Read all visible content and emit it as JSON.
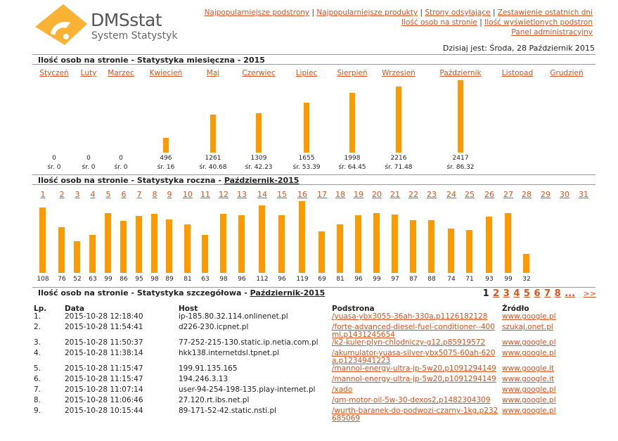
{
  "brand": {
    "name": "DMSstat",
    "tagline": "System Statystyk"
  },
  "nav": {
    "links": [
      "Najpopularniejsze podstrony",
      "Najpopularniejsze produkty",
      "Strony odsyłające",
      "Zestawienie ostatnich dni",
      "Ilość osob na stronie",
      "Ilość wyświetlonych podstron",
      "Panel administracyjny"
    ]
  },
  "today": "Dzisiaj jest: Środa, 28 Październik 2015",
  "monthly": {
    "title": "Ilość osob na stronie - Statystyka miesięczna - 2015",
    "months": [
      "Styczeń",
      "Luty",
      "Marzec",
      "Kwiecień",
      "Maj",
      "Czerwiec",
      "Lipiec",
      "Sierpień",
      "Wrzesień",
      "Październik",
      "Listopad",
      "Grudzień"
    ],
    "values": [
      0,
      0,
      0,
      496,
      1261,
      1309,
      1655,
      1998,
      2216,
      2417,
      null,
      null
    ],
    "values_text": [
      "0",
      "0",
      "0",
      "496",
      "1261",
      "1309",
      "1655",
      "1998",
      "2216",
      "2417",
      "",
      ""
    ],
    "avgs": [
      "śr. 0",
      "śr. 0",
      "śr. 0",
      "śr. 16",
      "śr. 40.68",
      "śr. 42.23",
      "śr. 53.39",
      "śr. 64.45",
      "śr. 71.48",
      "śr. 86.32",
      "",
      ""
    ]
  },
  "daily": {
    "title_prefix": "Ilość osob na stronie - Statystyka roczna - ",
    "title_link": "Październik-2015",
    "days": [
      "1",
      "2",
      "3",
      "4",
      "5",
      "6",
      "7",
      "8",
      "9",
      "10",
      "11",
      "12",
      "13",
      "14",
      "15",
      "16",
      "17",
      "18",
      "19",
      "20",
      "21",
      "22",
      "23",
      "24",
      "25",
      "26",
      "27",
      "28",
      "29",
      "30",
      "31"
    ],
    "values": [
      108,
      76,
      52,
      63,
      99,
      86,
      95,
      98,
      89,
      81,
      63,
      98,
      96,
      112,
      96,
      119,
      69,
      81,
      96,
      99,
      97,
      87,
      88,
      74,
      71,
      93,
      99,
      32,
      null,
      null,
      null
    ]
  },
  "detail": {
    "title_prefix": "Ilość osob na stronie - Statystyka szczegółowa - ",
    "title_link": "Październik-2015",
    "pager": {
      "pages": [
        "1",
        "2",
        "3",
        "4",
        "5",
        "6",
        "7",
        "8",
        "..."
      ],
      "current": "1",
      "next": ">>"
    },
    "headers": {
      "lp": "Lp.",
      "data": "Data",
      "host": "Host",
      "podstrona": "Podstrona",
      "zrodlo": "Źródło"
    },
    "rows": [
      {
        "lp": "1.",
        "data": "2015-10-28 12:18:40",
        "host": "ip-185.80.32.114.onlinenet.pl",
        "podstrona": "/yuasa-ybx3055-36ah-330a,p1126182128",
        "zrodlo": "www.google.pl"
      },
      {
        "lp": "2.",
        "data": "2015-10-28 11:54:41",
        "host": "d226-230.icpnet.pl",
        "podstrona": "/forte-advanced-diesel-fuel-conditioner--400ml,p1431245654",
        "zrodlo": "szukaj.onet.pl"
      },
      {
        "lp": "3.",
        "data": "2015-10-28 11:50:37",
        "host": "77-252-215-130.static.ip.netia.com.pl",
        "podstrona": "/k2-kuler-plyn-chlodniczy-g12,p85919572",
        "zrodlo": "www.google.pl"
      },
      {
        "lp": "4.",
        "data": "2015-10-28 11:38:14",
        "host": "hkk138.internetdsl.tpnet.pl",
        "podstrona": "/akumulator-yuasa-silver-ybx5075-60ah-620a,p1234941223",
        "zrodlo": "www.google.pl"
      },
      {
        "lp": "5.",
        "data": "2015-10-28 11:15:47",
        "host": "199.91.135.165",
        "podstrona": "/mannol-energy-ultra-jp-5w20,p1091294149",
        "zrodlo": "www.google.it"
      },
      {
        "lp": "6.",
        "data": "2015-10-28 11:15:47",
        "host": "194.246.3.13",
        "podstrona": "/mannol-energy-ultra-jp-5w20,p1091294149",
        "zrodlo": "www.google.it"
      },
      {
        "lp": "7.",
        "data": "2015-10-28 11:07:14",
        "host": "user-94-254-198-135.play-internet.pl",
        "podstrona": "/xado",
        "zrodlo": "www.google.pl"
      },
      {
        "lp": "8.",
        "data": "2015-10-28 11:06:46",
        "host": "27.120.rt.ibs.net.pl",
        "podstrona": "/gm-motor-oil-5w-30-dexos2,p1482304309",
        "zrodlo": "www.google.pl"
      },
      {
        "lp": "9.",
        "data": "2015-10-28 10:15:44",
        "host": "89-171-52-42.static.nsti.pl",
        "podstrona": "/wurth-baranek-do-podwozi-czarny-1kg,p232685069",
        "zrodlo": "www.google.pl"
      }
    ]
  },
  "colors": {
    "bar": "#ff9900",
    "link": "#d9521f",
    "logo": "#f7a325"
  }
}
